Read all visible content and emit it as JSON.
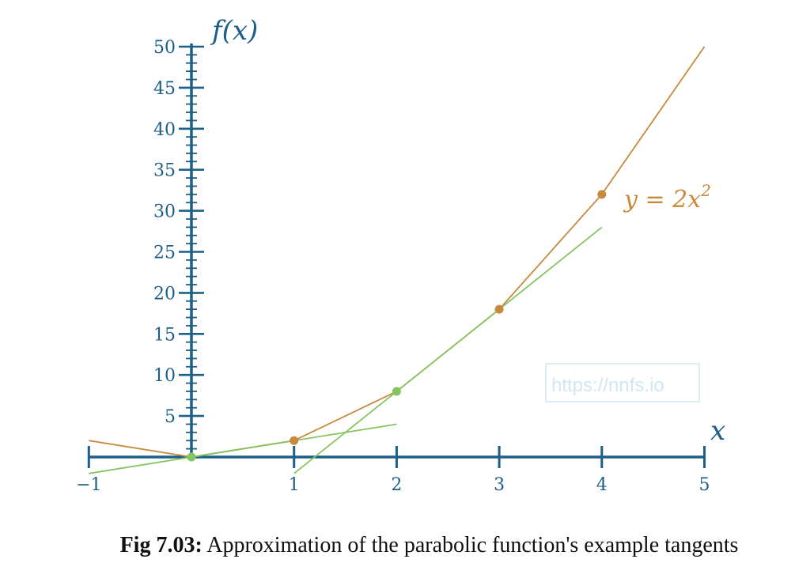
{
  "chart_data": {
    "type": "line",
    "xlabel": "x",
    "ylabel": "f(x)",
    "xlim": [
      -1,
      5
    ],
    "ylim": [
      0,
      50
    ],
    "x_ticks": [
      "−1",
      "1",
      "2",
      "3",
      "4",
      "5"
    ],
    "y_ticks": [
      "5",
      "10",
      "15",
      "20",
      "25",
      "30",
      "35",
      "40",
      "45",
      "50"
    ],
    "curve_label": {
      "prefix": "y = 2x",
      "exponent": "2"
    },
    "series": [
      {
        "role": "function",
        "color": "#c8893d",
        "points": [
          [
            -1,
            2
          ],
          [
            0,
            0
          ],
          [
            1,
            2
          ],
          [
            2,
            8
          ],
          [
            3,
            18
          ],
          [
            4,
            32
          ],
          [
            5,
            50
          ]
        ]
      },
      {
        "role": "tangent",
        "color": "#84c562",
        "points": [
          [
            -1,
            -2
          ],
          [
            0,
            0
          ],
          [
            2,
            4
          ]
        ]
      },
      {
        "role": "tangent",
        "color": "#84c562",
        "points": [
          [
            1,
            -2
          ],
          [
            2,
            8
          ],
          [
            4,
            28
          ]
        ]
      }
    ],
    "marked_points": [
      {
        "x": 0,
        "y": 0,
        "color": "#84c562"
      },
      {
        "x": 1,
        "y": 2,
        "color": "#c8893d"
      },
      {
        "x": 2,
        "y": 8,
        "color": "#84c562"
      },
      {
        "x": 3,
        "y": 18,
        "color": "#c8893d"
      },
      {
        "x": 4,
        "y": 32,
        "color": "#c8893d"
      }
    ],
    "axis_color": "#1d5f86",
    "grid": false
  },
  "watermark": "https://nnfs.io",
  "caption": {
    "bold": "Fig 7.03:",
    "text": " Approximation of the parabolic function's example tangents"
  }
}
